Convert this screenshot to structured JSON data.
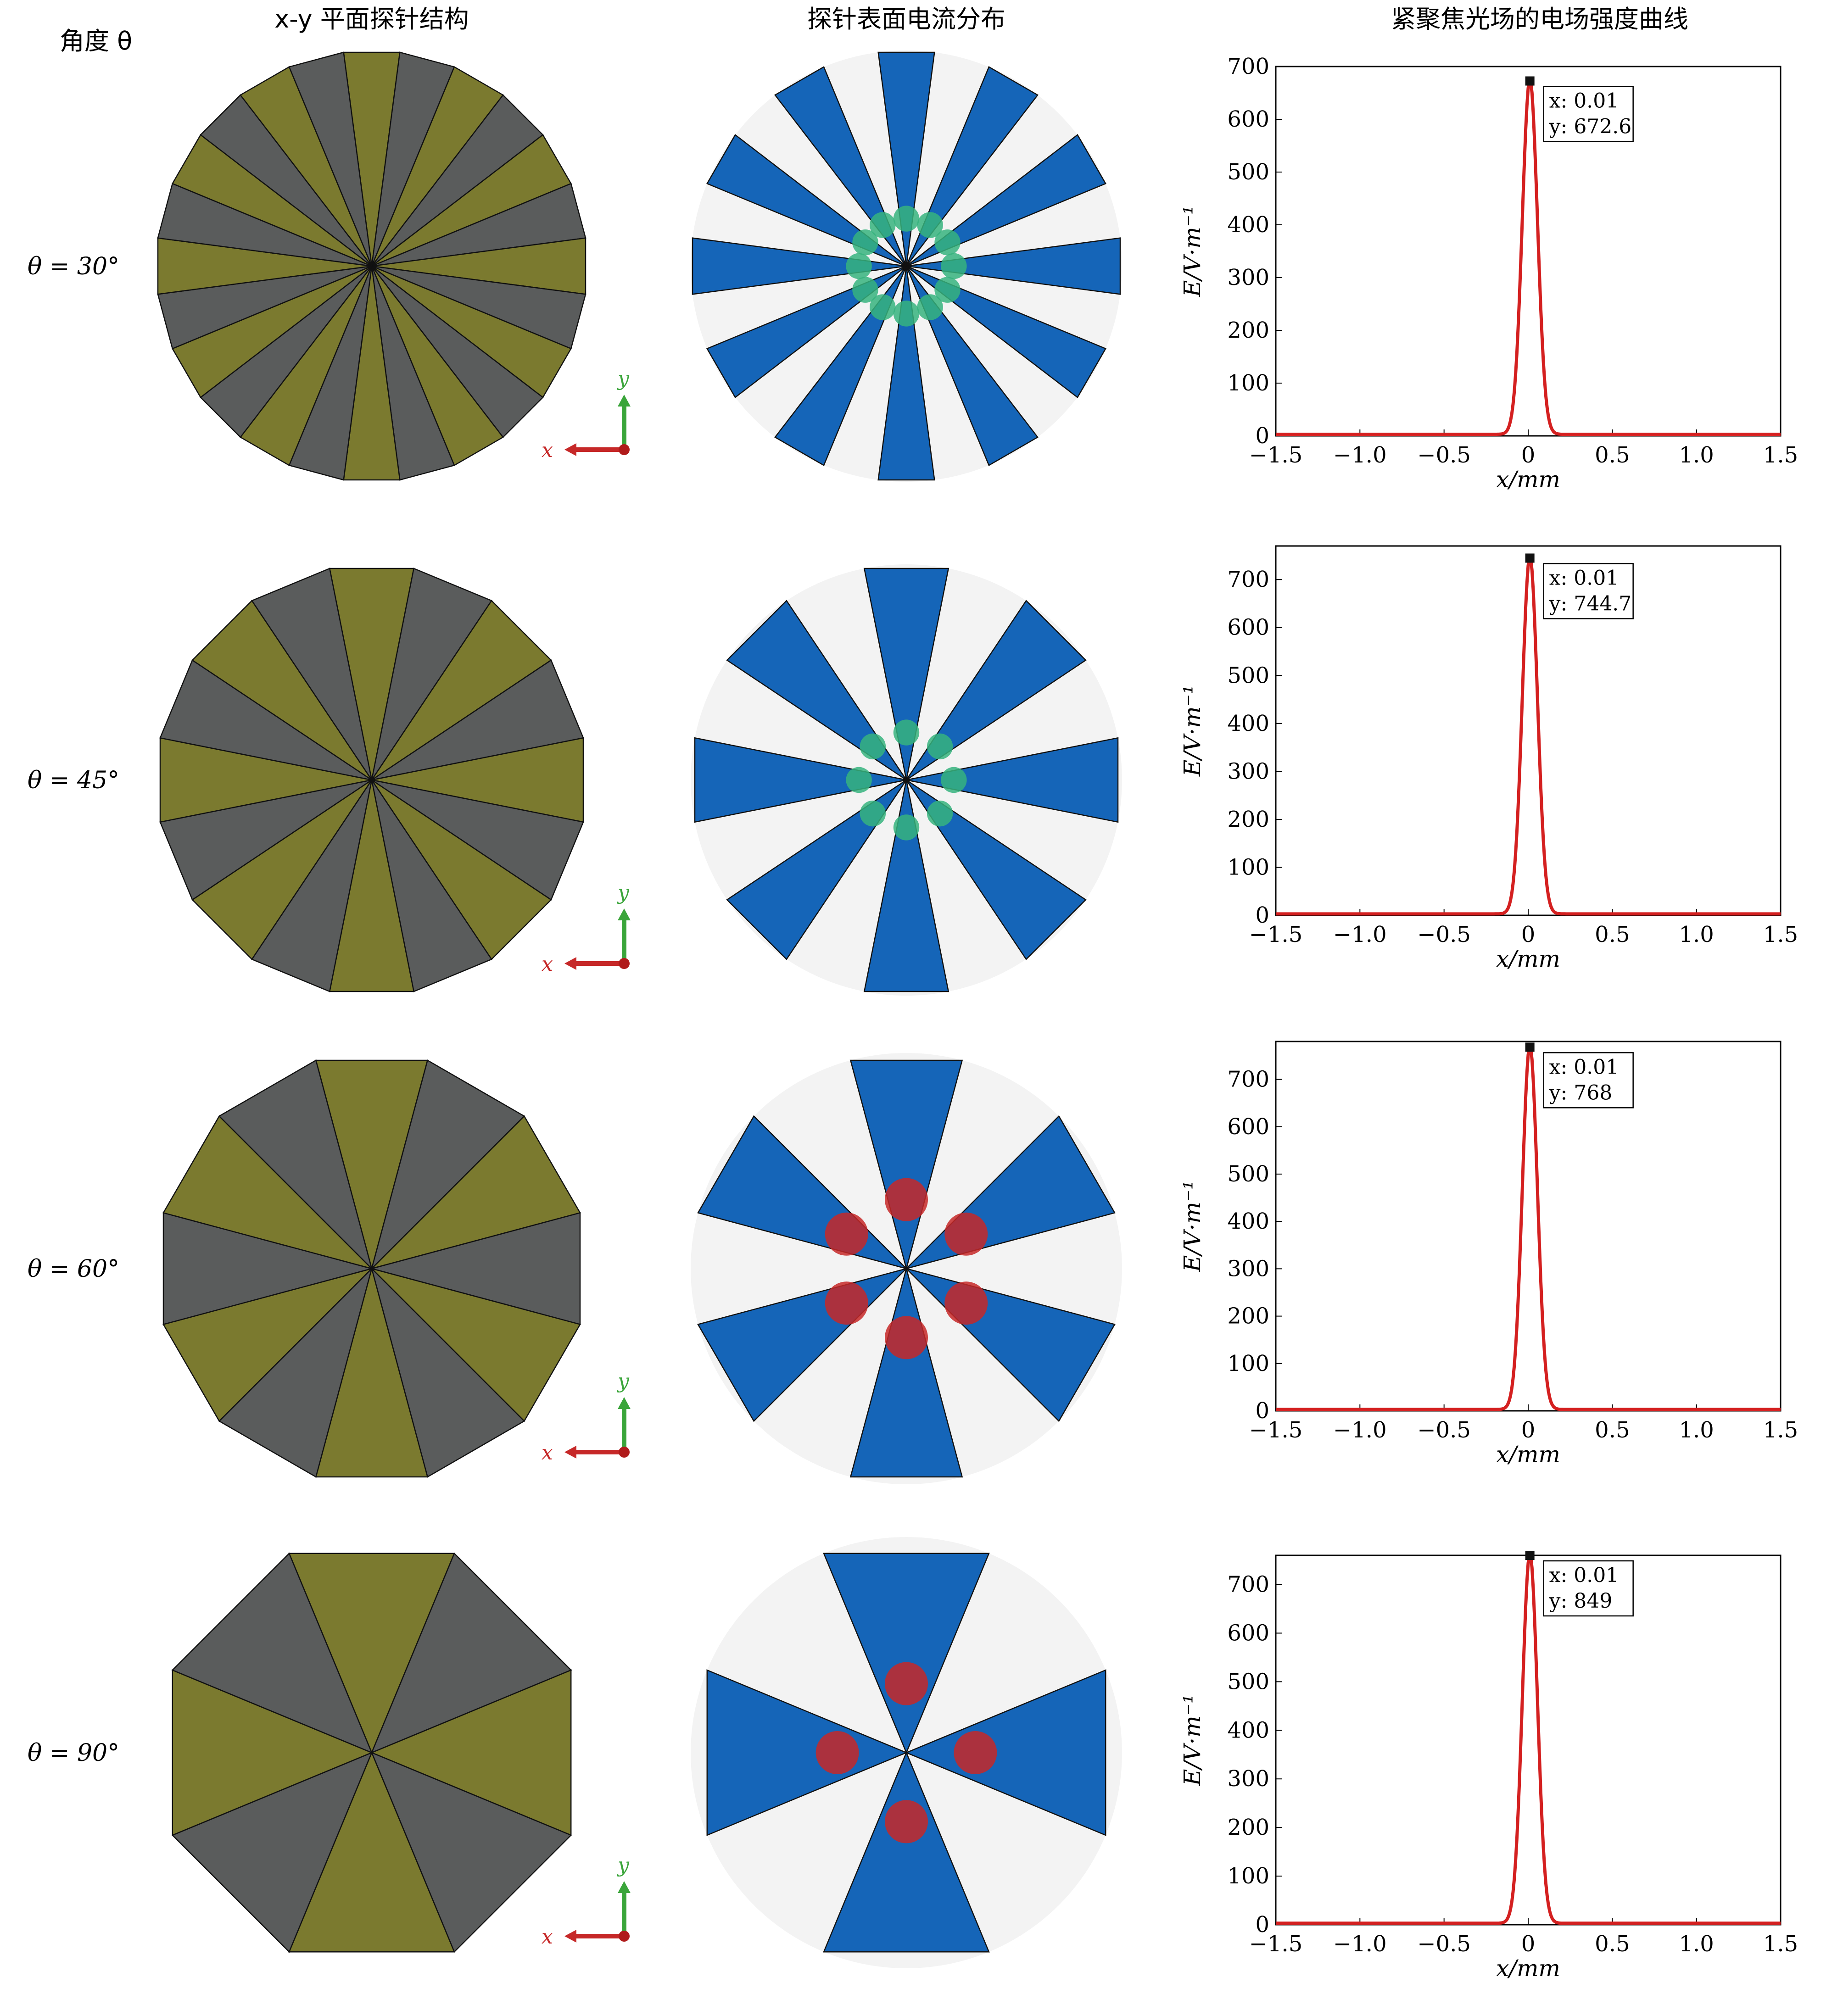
{
  "headers": {
    "angle": "角度 θ",
    "col1": "x-y 平面探针结构",
    "col2": "探针表面电流分布",
    "col3": "紧聚焦光场的电场强度曲线"
  },
  "axis_indicator": {
    "x": "x",
    "y": "y"
  },
  "colors": {
    "olive": "#7b7a2f",
    "gray": "#5a5c5c",
    "map_blue": "#1565b8",
    "map_light": "#f3f3f3",
    "curve_red": "#d42020"
  },
  "rows": [
    {
      "label": "θ = 30°",
      "theta": 30,
      "sectors": 24
    },
    {
      "label": "θ = 45°",
      "theta": 45,
      "sectors": 16
    },
    {
      "label": "θ = 60°",
      "theta": 60,
      "sectors": 12
    },
    {
      "label": "θ = 90°",
      "theta": 90,
      "sectors": 8
    }
  ],
  "chart_data": [
    {
      "type": "line",
      "xlabel": "x/mm",
      "ylabel": "E/V·m⁻¹",
      "xlim": [
        -1.5,
        1.5
      ],
      "ylim": [
        0,
        700
      ],
      "xticks": [
        "−1.5",
        "−1.0",
        "−0.5",
        "0",
        "0.5",
        "1.0",
        "1.5"
      ],
      "yticks": [
        "0",
        "100",
        "200",
        "300",
        "400",
        "500",
        "600",
        "700"
      ],
      "peak": {
        "x": 0.01,
        "y": 672.6
      },
      "datatip": [
        "x: 0.01",
        "y: 672.6"
      ]
    },
    {
      "type": "line",
      "xlabel": "x/mm",
      "ylabel": "E/V·m⁻¹",
      "xlim": [
        -1.5,
        1.5
      ],
      "ylim": [
        0,
        770
      ],
      "xticks": [
        "−1.5",
        "−1.0",
        "−0.5",
        "0",
        "0.5",
        "1.0",
        "1.5"
      ],
      "yticks": [
        "0",
        "100",
        "200",
        "300",
        "400",
        "500",
        "600",
        "700"
      ],
      "peak": {
        "x": 0.01,
        "y": 744.7
      },
      "datatip": [
        "x: 0.01",
        "y: 744.7"
      ]
    },
    {
      "type": "line",
      "xlabel": "x/mm",
      "ylabel": "E/V·m⁻¹",
      "xlim": [
        -1.5,
        1.5
      ],
      "ylim": [
        0,
        780
      ],
      "xticks": [
        "−1.5",
        "−1.0",
        "−0.5",
        "0",
        "0.5",
        "1.0",
        "1.5"
      ],
      "yticks": [
        "0",
        "100",
        "200",
        "300",
        "400",
        "500",
        "600",
        "700"
      ],
      "peak": {
        "x": 0.01,
        "y": 768
      },
      "datatip": [
        "x: 0.01",
        "y: 768"
      ]
    },
    {
      "type": "line",
      "xlabel": "x/mm",
      "ylabel": "E/V·m⁻¹",
      "xlim": [
        -1.5,
        1.5
      ],
      "ylim": [
        0,
        760
      ],
      "xticks": [
        "−1.5",
        "−1.0",
        "−0.5",
        "0",
        "0.5",
        "1.0",
        "1.5"
      ],
      "yticks": [
        "0",
        "100",
        "200",
        "300",
        "400",
        "500",
        "600",
        "700"
      ],
      "peak": {
        "x": 0.01,
        "y": 849
      },
      "datatip": [
        "x: 0.01",
        "y: 849"
      ]
    }
  ]
}
